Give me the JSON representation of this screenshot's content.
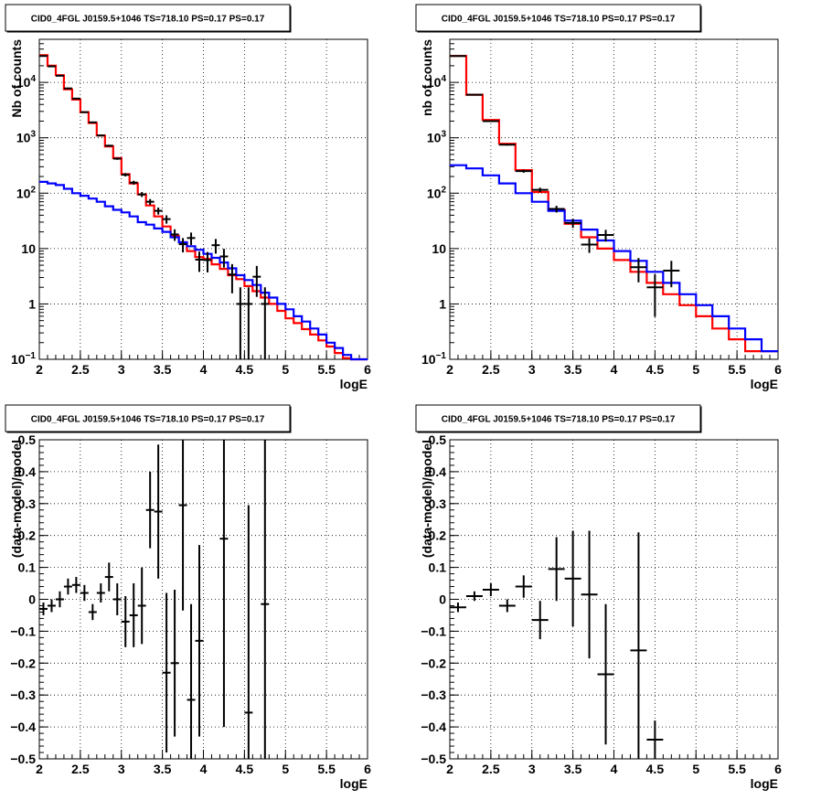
{
  "chart_data": [
    {
      "type": "line",
      "title": "CID0_4FGL J0159.5+1046 TS=718.10 PS=0.17 PS=0.17",
      "xlabel": "logE",
      "ylabel": "Nb of counts",
      "xlim": [
        2,
        6
      ],
      "ylim": [
        0.1,
        60000
      ],
      "yscale": "log",
      "grid": true,
      "x_ticks": [
        "2",
        "2.5",
        "3",
        "3.5",
        "4",
        "4.5",
        "5",
        "5.5",
        "6"
      ],
      "y_ticks": [
        {
          "value": 0.1,
          "label": "10",
          "exp": "−1"
        },
        {
          "value": 1,
          "label": "1",
          "exp": ""
        },
        {
          "value": 10,
          "label": "10",
          "exp": ""
        },
        {
          "value": 100,
          "label": "10",
          "exp": "2"
        },
        {
          "value": 1000,
          "label": "10",
          "exp": "3"
        },
        {
          "value": 10000,
          "label": "10",
          "exp": "4"
        }
      ],
      "bin_edges": [
        2.0,
        2.1,
        2.2,
        2.3,
        2.4,
        2.5,
        2.6,
        2.7,
        2.8,
        2.9,
        3.0,
        3.1,
        3.2,
        3.3,
        3.4,
        3.5,
        3.6,
        3.7,
        3.8,
        3.9,
        4.0,
        4.1,
        4.2,
        4.3,
        4.4,
        4.5,
        4.6,
        4.7,
        4.8,
        4.9,
        5.0,
        5.1,
        5.2,
        5.3,
        5.4,
        5.5,
        5.6,
        5.7,
        5.8,
        5.9,
        6.0
      ],
      "series": [
        {
          "name": "",
          "color": "#000000",
          "values": [
            30000,
            19500,
            13200,
            7800,
            5100,
            2900,
            1900,
            1100,
            720,
            420,
            215,
            155,
            95,
            70,
            48,
            34,
            18,
            12,
            15.5,
            6.3,
            6.2,
            11.5,
            7.2,
            3.4,
            1.0,
            1.0,
            3.1,
            1.0
          ],
          "x": [
            2.05,
            2.15,
            2.25,
            2.35,
            2.45,
            2.55,
            2.65,
            2.75,
            2.85,
            2.95,
            3.05,
            3.15,
            3.25,
            3.35,
            3.45,
            3.55,
            3.65,
            3.75,
            3.85,
            3.95,
            4.05,
            4.15,
            4.25,
            4.35,
            4.45,
            4.55,
            4.65,
            4.75
          ]
        },
        {
          "name": "",
          "color": "#ff0000",
          "values": [
            31000,
            20000,
            13500,
            7500,
            4900,
            2900,
            1850,
            1100,
            700,
            430,
            220,
            150,
            95,
            60,
            38,
            25,
            17,
            13,
            9,
            7,
            6.5,
            5.2,
            4.3,
            3.3,
            2.8,
            2.1,
            1.7,
            1.3,
            1.0,
            0.75,
            0.55,
            0.45,
            0.35,
            0.28,
            0.22,
            0.17,
            0.13,
            0.105,
            0.1,
            0.1
          ]
        },
        {
          "name": "",
          "color": "#0000ff",
          "values": [
            160,
            150,
            140,
            120,
            100,
            90,
            80,
            70,
            58,
            50,
            45,
            38,
            30,
            27,
            23,
            20,
            16,
            13,
            11,
            9.5,
            8,
            6.8,
            5.6,
            4.4,
            3.3,
            2.7,
            2.2,
            1.6,
            1.3,
            1.0,
            0.8,
            0.6,
            0.48,
            0.36,
            0.28,
            0.2,
            0.16,
            0.12,
            0.1,
            0.1
          ]
        }
      ]
    },
    {
      "type": "line",
      "title": "CID0_4FGL J0159.5+1046 TS=718.10 PS=0.17 PS=0.17",
      "xlabel": "logE",
      "ylabel": "nb of counts",
      "xlim": [
        2,
        6
      ],
      "ylim": [
        0.1,
        60000
      ],
      "yscale": "log",
      "grid": true,
      "x_ticks": [
        "2",
        "2.5",
        "3",
        "3.5",
        "4",
        "4.5",
        "5",
        "5.5",
        "6"
      ],
      "y_ticks": [
        {
          "value": 0.1,
          "label": "10",
          "exp": "−1"
        },
        {
          "value": 1,
          "label": "1",
          "exp": ""
        },
        {
          "value": 10,
          "label": "10",
          "exp": ""
        },
        {
          "value": 100,
          "label": "10",
          "exp": "2"
        },
        {
          "value": 1000,
          "label": "10",
          "exp": "3"
        },
        {
          "value": 10000,
          "label": "10",
          "exp": "4"
        }
      ],
      "bin_edges": [
        2.0,
        2.2,
        2.4,
        2.6,
        2.8,
        3.0,
        3.2,
        3.4,
        3.6,
        3.8,
        4.0,
        4.2,
        4.4,
        4.6,
        4.8,
        5.0,
        5.2,
        5.4,
        5.6,
        5.8,
        6.0
      ],
      "series": [
        {
          "name": "",
          "color": "#000000",
          "values": [
            30000,
            6000,
            2000,
            750,
            250,
            115,
            52,
            29,
            11.8,
            17.6,
            4.6,
            2.0,
            4.0
          ],
          "x": [
            2.1,
            2.3,
            2.5,
            2.7,
            2.9,
            3.1,
            3.3,
            3.5,
            3.7,
            3.9,
            4.3,
            4.5,
            4.7
          ]
        },
        {
          "name": "",
          "color": "#ff0000",
          "values": [
            30000,
            6000,
            2100,
            780,
            260,
            105,
            50,
            28,
            16,
            10,
            6.2,
            3.8,
            2.4,
            1.5,
            0.95,
            0.6,
            0.36,
            0.23,
            0.14,
            0.14
          ]
        },
        {
          "name": "",
          "color": "#0000ff",
          "values": [
            320,
            280,
            210,
            150,
            100,
            70,
            48,
            32,
            22,
            14,
            9,
            6,
            3.8,
            2.4,
            1.5,
            0.95,
            0.6,
            0.36,
            0.23,
            0.14
          ]
        }
      ]
    },
    {
      "type": "scatter",
      "title": "CID0_4FGL J0159.5+1046 TS=718.10 PS=0.17 PS=0.17",
      "xlabel": "logE",
      "ylabel": "(data-model)/model",
      "xlim": [
        2,
        6
      ],
      "ylim": [
        -0.5,
        0.5
      ],
      "grid": true,
      "x_ticks": [
        "2",
        "2.5",
        "3",
        "3.5",
        "4",
        "4.5",
        "5",
        "5.5",
        "6"
      ],
      "y_ticks": [
        {
          "value": 0.5,
          "label": "0.5",
          "exp": ""
        },
        {
          "value": 0.4,
          "label": "0.4",
          "exp": ""
        },
        {
          "value": 0.3,
          "label": "0.3",
          "exp": ""
        },
        {
          "value": 0.2,
          "label": "0.2",
          "exp": ""
        },
        {
          "value": 0.1,
          "label": "0.1",
          "exp": ""
        },
        {
          "value": 0,
          "label": "0",
          "exp": ""
        },
        {
          "value": -0.1,
          "label": "−0.1",
          "exp": ""
        },
        {
          "value": -0.2,
          "label": "−0.2",
          "exp": ""
        },
        {
          "value": -0.3,
          "label": "−0.3",
          "exp": ""
        },
        {
          "value": -0.4,
          "label": "−0.4",
          "exp": ""
        },
        {
          "value": -0.5,
          "label": "−0.5",
          "exp": ""
        }
      ],
      "series": [
        {
          "name": "",
          "color": "#000000",
          "x": [
            2.05,
            2.15,
            2.25,
            2.35,
            2.45,
            2.55,
            2.65,
            2.75,
            2.85,
            2.95,
            3.05,
            3.15,
            3.25,
            3.35,
            3.45,
            3.55,
            3.65,
            3.75,
            3.85,
            3.95,
            4.25,
            4.55,
            4.75
          ],
          "values": [
            -0.03,
            -0.02,
            0.0,
            0.04,
            0.045,
            0.02,
            -0.04,
            0.02,
            0.07,
            0.0,
            -0.07,
            -0.05,
            -0.02,
            0.28,
            0.275,
            -0.23,
            -0.2,
            0.295,
            -0.315,
            -0.13,
            0.19,
            -0.355,
            -0.015
          ],
          "errors": [
            0.02,
            0.02,
            0.025,
            0.025,
            0.025,
            0.025,
            0.025,
            0.03,
            0.045,
            0.05,
            0.08,
            0.1,
            0.12,
            0.12,
            0.21,
            0.25,
            0.23,
            0.33,
            0.3,
            0.3,
            0.59,
            0.65,
            0.52
          ]
        }
      ]
    },
    {
      "type": "scatter",
      "title": "CID0_4FGL J0159.5+1046 TS=718.10 PS=0.17 PS=0.17",
      "xlabel": "logE",
      "ylabel": "(data-model)/model",
      "xlim": [
        2,
        6
      ],
      "ylim": [
        -0.5,
        0.5
      ],
      "grid": true,
      "x_ticks": [
        "2",
        "2.5",
        "3",
        "3.5",
        "4",
        "4.5",
        "5",
        "5.5",
        "6"
      ],
      "y_ticks": [
        {
          "value": 0.5,
          "label": "0.5",
          "exp": ""
        },
        {
          "value": 0.4,
          "label": "0.4",
          "exp": ""
        },
        {
          "value": 0.3,
          "label": "0.3",
          "exp": ""
        },
        {
          "value": 0.2,
          "label": "0.2",
          "exp": ""
        },
        {
          "value": 0.1,
          "label": "0.1",
          "exp": ""
        },
        {
          "value": 0,
          "label": "0",
          "exp": ""
        },
        {
          "value": -0.1,
          "label": "−0.1",
          "exp": ""
        },
        {
          "value": -0.2,
          "label": "−0.2",
          "exp": ""
        },
        {
          "value": -0.3,
          "label": "−0.3",
          "exp": ""
        },
        {
          "value": -0.4,
          "label": "−0.4",
          "exp": ""
        },
        {
          "value": -0.5,
          "label": "−0.5",
          "exp": ""
        }
      ],
      "series": [
        {
          "name": "",
          "color": "#000000",
          "x": [
            2.1,
            2.3,
            2.5,
            2.7,
            2.9,
            3.1,
            3.3,
            3.5,
            3.7,
            3.9,
            4.3,
            4.5
          ],
          "values": [
            -0.025,
            0.01,
            0.03,
            -0.02,
            0.04,
            -0.065,
            0.095,
            0.065,
            0.015,
            -0.235,
            -0.16,
            -0.44
          ],
          "errors": [
            0.015,
            0.015,
            0.02,
            0.02,
            0.035,
            0.06,
            0.1,
            0.15,
            0.2,
            0.22,
            0.37,
            0.06
          ]
        }
      ]
    }
  ]
}
